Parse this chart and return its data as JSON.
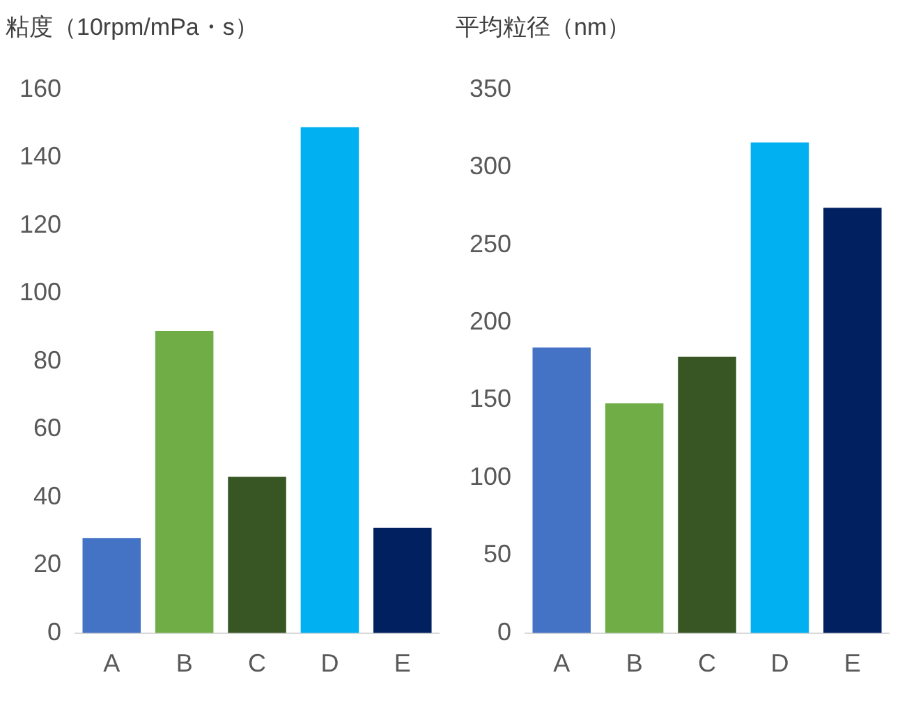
{
  "chart_data": [
    {
      "type": "bar",
      "title": "粘度（10rpm/mPa・s）",
      "categories": [
        "A",
        "B",
        "C",
        "D",
        "E"
      ],
      "values": [
        28,
        89,
        46,
        149,
        31
      ],
      "colors": [
        "#4472c4",
        "#70ad47",
        "#375623",
        "#00b0f0",
        "#002060"
      ],
      "ylim": [
        0,
        160
      ],
      "yticks": [
        0,
        20,
        40,
        60,
        80,
        100,
        120,
        140,
        160
      ]
    },
    {
      "type": "bar",
      "title": "平均粒径（nm）",
      "categories": [
        "A",
        "B",
        "C",
        "D",
        "E"
      ],
      "values": [
        184,
        148,
        178,
        316,
        274
      ],
      "colors": [
        "#4472c4",
        "#70ad47",
        "#375623",
        "#00b0f0",
        "#002060"
      ],
      "ylim": [
        0,
        350
      ],
      "yticks": [
        0,
        50,
        100,
        150,
        200,
        250,
        300,
        350
      ]
    }
  ]
}
